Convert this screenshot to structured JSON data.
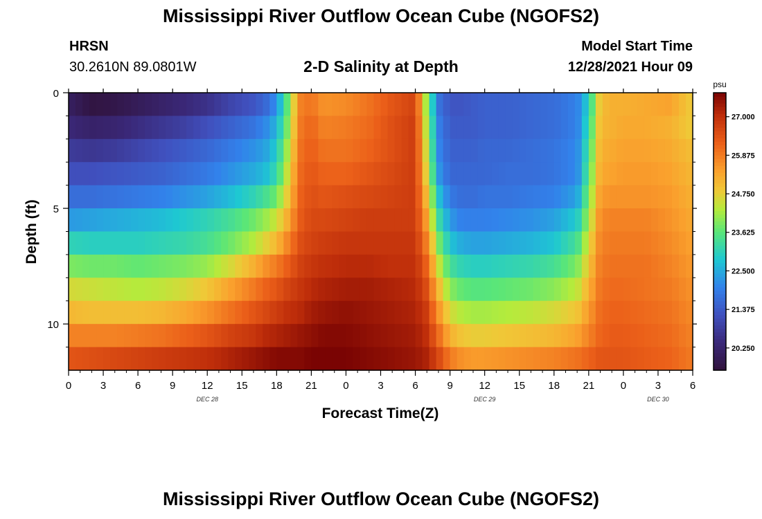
{
  "header": {
    "title": "Mississippi River Outflow Ocean Cube (NGOFS2)",
    "station_name": "HRSN",
    "station_coords": "30.2610N  89.0801W",
    "subtitle": "2-D Salinity at Depth",
    "model_start_label": "Model Start Time",
    "model_start_value": "12/28/2021 Hour 09"
  },
  "footer": {
    "title": "Mississippi River Outflow Ocean Cube (NGOFS2)"
  },
  "chart_data": {
    "type": "heatmap",
    "title": "2-D Salinity at Depth",
    "xlabel": "Forecast Time(Z)",
    "ylabel": "Depth (ft)",
    "x_range_hours": [
      0,
      54
    ],
    "x_tick_labels": [
      "0",
      "3",
      "6",
      "9",
      "12",
      "15",
      "18",
      "21",
      "0",
      "3",
      "6",
      "9",
      "12",
      "15",
      "18",
      "21",
      "0",
      "3",
      "6"
    ],
    "day_labels": [
      {
        "label": "DEC 28",
        "hour": 12
      },
      {
        "label": "DEC 29",
        "hour": 36
      },
      {
        "label": "DEC 30",
        "hour": 51
      }
    ],
    "y_range_ft": [
      0,
      12
    ],
    "y_tick_labels": [
      {
        "label": "0",
        "value": 0
      },
      {
        "label": "5",
        "value": 5
      },
      {
        "label": "10",
        "value": 10
      }
    ],
    "colorbar": {
      "unit": "psu",
      "min": 19.6,
      "max": 27.7,
      "tick_values": [
        20.25,
        21.375,
        22.5,
        23.625,
        24.75,
        25.875,
        27.0
      ],
      "tick_labels": [
        "20.250",
        "21.375",
        "22.500",
        "23.625",
        "24.750",
        "25.875",
        "27.000"
      ]
    },
    "depth_levels_ft": [
      0.5,
      1.5,
      2.5,
      3.5,
      4.5,
      5.5,
      6.5,
      7.5,
      8.5,
      9.5,
      10.5,
      11.5
    ],
    "sample_hours": [
      0,
      2,
      4,
      6,
      8,
      10,
      12,
      14,
      16,
      17,
      18,
      19,
      20,
      21,
      22,
      24,
      26,
      28,
      30,
      31,
      32,
      33,
      34,
      35,
      36,
      38,
      40,
      42,
      44,
      45,
      46,
      47,
      48,
      50,
      52,
      54
    ],
    "salinity_psu": [
      [
        20.1,
        19.7,
        19.8,
        20.0,
        20.2,
        20.4,
        20.6,
        21.0,
        21.3,
        21.6,
        22.2,
        23.8,
        25.8,
        26.0,
        25.6,
        25.7,
        26.0,
        26.4,
        26.7,
        24.0,
        21.8,
        21.3,
        21.3,
        21.4,
        21.5,
        21.5,
        21.6,
        21.7,
        22.0,
        23.0,
        25.0,
        25.2,
        25.2,
        25.3,
        25.4,
        24.8
      ],
      [
        20.4,
        20.2,
        20.3,
        20.5,
        20.7,
        20.9,
        21.2,
        21.5,
        21.8,
        22.1,
        22.6,
        24.0,
        25.9,
        26.2,
        25.8,
        25.9,
        26.1,
        26.5,
        26.8,
        24.2,
        22.0,
        21.4,
        21.4,
        21.4,
        21.5,
        21.5,
        21.6,
        21.7,
        22.0,
        23.2,
        25.1,
        25.2,
        25.3,
        25.3,
        25.2,
        24.8
      ],
      [
        20.8,
        20.7,
        20.8,
        21.0,
        21.2,
        21.4,
        21.6,
        21.9,
        22.2,
        22.4,
        22.9,
        24.3,
        26.0,
        26.3,
        26.0,
        26.0,
        26.2,
        26.5,
        26.8,
        24.4,
        22.1,
        21.5,
        21.5,
        21.5,
        21.6,
        21.6,
        21.7,
        21.8,
        22.1,
        23.4,
        25.2,
        25.3,
        25.4,
        25.4,
        25.3,
        25.0
      ],
      [
        21.2,
        21.2,
        21.3,
        21.4,
        21.5,
        21.7,
        21.9,
        22.2,
        22.5,
        22.7,
        23.2,
        24.6,
        26.1,
        26.4,
        26.2,
        26.2,
        26.4,
        26.6,
        26.8,
        24.6,
        22.3,
        21.6,
        21.6,
        21.6,
        21.6,
        21.7,
        21.7,
        21.8,
        22.1,
        23.6,
        25.3,
        25.4,
        25.5,
        25.5,
        25.4,
        25.1
      ],
      [
        21.7,
        21.7,
        21.8,
        21.9,
        22.0,
        22.2,
        22.4,
        22.7,
        23.1,
        23.4,
        23.8,
        24.9,
        26.2,
        26.5,
        26.4,
        26.5,
        26.6,
        26.7,
        26.8,
        25.0,
        22.8,
        21.9,
        21.7,
        21.7,
        21.8,
        21.8,
        21.9,
        22.0,
        22.4,
        23.9,
        25.5,
        25.6,
        25.6,
        25.6,
        25.5,
        25.2
      ],
      [
        22.3,
        22.4,
        22.5,
        22.6,
        22.7,
        22.9,
        23.1,
        23.4,
        23.8,
        24.1,
        24.5,
        25.3,
        26.3,
        26.6,
        26.6,
        26.7,
        26.8,
        26.8,
        26.8,
        25.4,
        23.3,
        22.3,
        22.0,
        22.0,
        22.0,
        22.1,
        22.2,
        22.4,
        22.9,
        24.2,
        25.7,
        25.8,
        25.8,
        25.8,
        25.6,
        25.3
      ],
      [
        23.1,
        23.0,
        23.0,
        23.0,
        23.1,
        23.2,
        23.4,
        23.8,
        24.3,
        24.7,
        25.1,
        25.8,
        26.5,
        26.7,
        26.8,
        26.9,
        26.9,
        26.9,
        26.9,
        25.8,
        23.9,
        22.8,
        22.5,
        22.4,
        22.4,
        22.5,
        22.6,
        22.8,
        23.4,
        24.6,
        25.8,
        25.9,
        25.9,
        25.9,
        25.7,
        25.4
      ],
      [
        23.9,
        23.8,
        23.8,
        23.7,
        23.8,
        23.9,
        24.1,
        24.6,
        25.2,
        25.6,
        25.9,
        26.3,
        26.7,
        26.9,
        27.0,
        27.1,
        27.1,
        27.0,
        27.0,
        26.2,
        24.5,
        23.4,
        23.1,
        23.0,
        23.0,
        23.1,
        23.2,
        23.4,
        23.9,
        24.9,
        25.9,
        26.0,
        26.0,
        26.0,
        25.8,
        25.5
      ],
      [
        24.6,
        24.5,
        24.4,
        24.3,
        24.4,
        24.6,
        24.9,
        25.4,
        25.9,
        26.2,
        26.4,
        26.7,
        26.9,
        27.1,
        27.2,
        27.3,
        27.3,
        27.2,
        27.1,
        26.5,
        25.1,
        24.0,
        23.7,
        23.6,
        23.6,
        23.7,
        23.8,
        24.0,
        24.4,
        25.2,
        26.0,
        26.1,
        26.1,
        26.0,
        25.9,
        25.6
      ],
      [
        25.1,
        25.0,
        25.0,
        25.0,
        25.1,
        25.3,
        25.6,
        26.0,
        26.4,
        26.6,
        26.8,
        27.0,
        27.1,
        27.3,
        27.4,
        27.5,
        27.4,
        27.3,
        27.2,
        26.8,
        25.6,
        24.6,
        24.3,
        24.2,
        24.2,
        24.3,
        24.4,
        24.6,
        24.9,
        25.5,
        26.1,
        26.2,
        26.2,
        26.1,
        26.0,
        25.7
      ],
      [
        25.8,
        25.8,
        25.8,
        25.9,
        26.0,
        26.2,
        26.4,
        26.7,
        26.9,
        27.1,
        27.2,
        27.3,
        27.4,
        27.5,
        27.6,
        27.6,
        27.5,
        27.4,
        27.3,
        27.0,
        26.1,
        25.2,
        24.9,
        24.8,
        24.8,
        24.9,
        25.0,
        25.1,
        25.4,
        25.8,
        26.2,
        26.3,
        26.3,
        26.2,
        26.1,
        25.8
      ],
      [
        26.4,
        26.5,
        26.6,
        26.7,
        26.8,
        26.9,
        27.0,
        27.2,
        27.4,
        27.5,
        27.6,
        27.6,
        27.6,
        27.7,
        27.7,
        27.7,
        27.6,
        27.5,
        27.4,
        27.2,
        26.6,
        25.9,
        25.6,
        25.5,
        25.5,
        25.6,
        25.7,
        25.8,
        26.0,
        26.2,
        26.4,
        26.4,
        26.4,
        26.3,
        26.2,
        25.9
      ]
    ]
  }
}
